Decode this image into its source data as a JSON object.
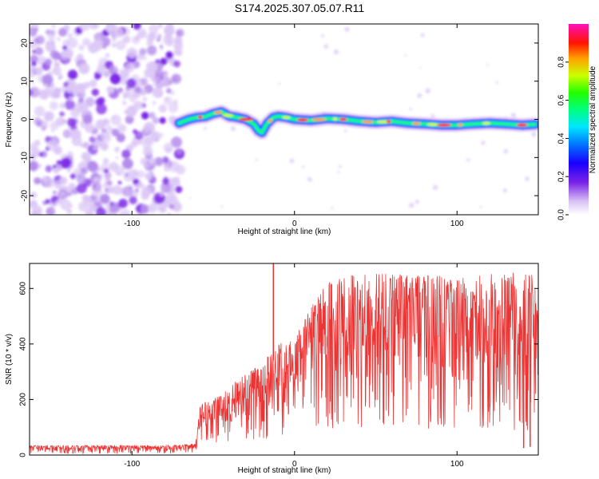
{
  "title": "S174.2025.307.05.07.R11",
  "chart_data": [
    {
      "type": "heatmap",
      "xlabel": "Height of straight line (km)",
      "ylabel": "Frequency (Hz)",
      "xlim": [
        -163,
        150
      ],
      "ylim": [
        -25,
        25
      ],
      "xticks": [
        -100,
        0,
        100
      ],
      "yticks": [
        -20,
        -10,
        0,
        10,
        20
      ],
      "noise_region_x": [
        -163,
        -70
      ],
      "ridge": [
        [
          -71,
          -1
        ],
        [
          -65,
          0
        ],
        [
          -60,
          0.5
        ],
        [
          -55,
          0.7
        ],
        [
          -50,
          1.5
        ],
        [
          -45,
          2.0
        ],
        [
          -40,
          0.8
        ],
        [
          -35,
          0.5
        ],
        [
          -30,
          0.0
        ],
        [
          -25,
          -1.2
        ],
        [
          -22,
          -3.0
        ],
        [
          -20,
          -3.5
        ],
        [
          -17,
          -1.2
        ],
        [
          -13,
          0.5
        ],
        [
          -10,
          0.8
        ],
        [
          -5,
          0.5
        ],
        [
          0,
          0
        ],
        [
          10,
          -0.3
        ],
        [
          20,
          0.2
        ],
        [
          30,
          0.0
        ],
        [
          40,
          -0.5
        ],
        [
          50,
          -0.8
        ],
        [
          60,
          -0.5
        ],
        [
          70,
          -1.0
        ],
        [
          80,
          -1.2
        ],
        [
          90,
          -1.5
        ],
        [
          100,
          -1.5
        ],
        [
          110,
          -1.2
        ],
        [
          120,
          -1.0
        ],
        [
          130,
          -1.2
        ],
        [
          140,
          -1.5
        ],
        [
          148,
          -1.3
        ]
      ],
      "colorbar": {
        "label": "Normalized spectral amplitude",
        "ticks": [
          0.0,
          0.2,
          0.4,
          0.6,
          0.8
        ],
        "tick_labels": [
          "0.0",
          "0.2",
          "0.4",
          "0.6",
          "0.8"
        ],
        "range": [
          0,
          1
        ]
      }
    },
    {
      "type": "line",
      "xlabel": "Height of straight line (km)",
      "ylabel": "SNR (10 * v/v)",
      "xlim": [
        -163,
        150
      ],
      "ylim": [
        0,
        690
      ],
      "xticks": [
        -100,
        0,
        100
      ],
      "yticks": [
        0,
        200,
        400,
        600
      ],
      "color": "#ee3333",
      "envelope": [
        {
          "x": -163,
          "low": 5,
          "high": 35
        },
        {
          "x": -80,
          "low": 5,
          "high": 35
        },
        {
          "x": -61,
          "low": 10,
          "high": 40
        },
        {
          "x": -58,
          "low": 15,
          "high": 180
        },
        {
          "x": -45,
          "low": 35,
          "high": 220
        },
        {
          "x": -35,
          "low": 45,
          "high": 270
        },
        {
          "x": -20,
          "low": 55,
          "high": 330
        },
        {
          "x": -10,
          "low": 70,
          "high": 400
        },
        {
          "x": 0,
          "low": 85,
          "high": 420
        },
        {
          "x": 10,
          "low": 90,
          "high": 530
        },
        {
          "x": 20,
          "low": 95,
          "high": 620
        },
        {
          "x": 40,
          "low": 100,
          "high": 660
        },
        {
          "x": 60,
          "low": 100,
          "high": 650
        },
        {
          "x": 80,
          "low": 95,
          "high": 650
        },
        {
          "x": 100,
          "low": 100,
          "high": 640
        },
        {
          "x": 120,
          "low": 90,
          "high": 650
        },
        {
          "x": 140,
          "low": 80,
          "high": 660
        },
        {
          "x": 150,
          "low": 80,
          "high": 640
        }
      ],
      "spikes": [
        {
          "x": -13,
          "y": 690
        },
        {
          "x": 141,
          "y": 25
        },
        {
          "x": 145,
          "y": 30
        }
      ]
    }
  ]
}
